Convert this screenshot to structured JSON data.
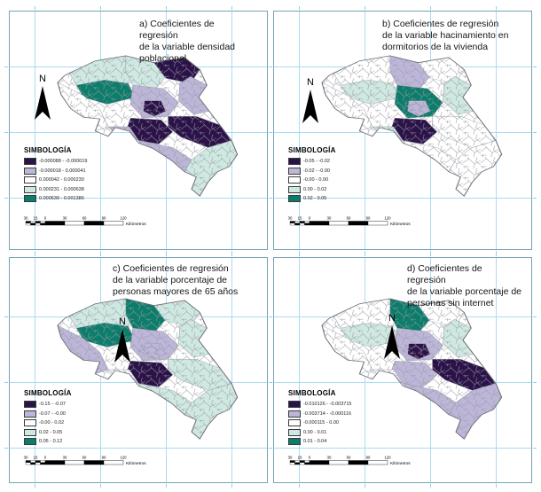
{
  "figure": {
    "background": "#ffffff",
    "legend_title": "SIMBOLOGÍA",
    "north_label": "N",
    "scale_label": "Kilómetros",
    "scale_ticks": [
      "30",
      "15",
      "0",
      "30",
      "60",
      "90",
      "120"
    ],
    "class_colors": [
      "#2b1349",
      "#bdb6d9",
      "#ffffff",
      "#cfe9e2",
      "#0d7d6b"
    ],
    "grid_color": "#a9dcf2",
    "frame_color": "#77a3b2"
  },
  "panels": [
    {
      "id": "a",
      "title": "a) Coeficientes de\nregresión\nde la variable densidad\npoblacional",
      "classes": [
        "-0.000088 - -0.000019",
        "-0.000018 - 0.000041",
        "0.000042 - 0.000230",
        "0.000231 - 0.000638",
        "0.000639 - 0.001386"
      ],
      "region_classes": [
        3,
        4,
        2,
        3,
        0,
        1,
        1,
        0,
        0,
        0,
        1,
        3,
        1
      ]
    },
    {
      "id": "b",
      "title": "b) Coeficientes de regresión\nde la variable hacinamiento en\ndormitorios de la vivienda",
      "classes": [
        "-0.05 - -0.02",
        "-0.02 - -0.00",
        "-0.00 - 0.00",
        "0.00 - 0.02",
        "0.02 - 0.05"
      ],
      "region_classes": [
        2,
        3,
        2,
        1,
        2,
        3,
        4,
        1,
        0,
        2,
        2,
        2,
        3
      ]
    },
    {
      "id": "c",
      "title": "c) Coeficientes de regresión\nde la variable porcentaje de\npersonas mayores de 65 años",
      "classes": [
        "-0.15 - -0.07",
        "-0.07 - -0.00",
        "-0.00 - 0.02",
        "0.02 - 0.05",
        "0.05 - 0.12"
      ],
      "region_classes": [
        3,
        4,
        1,
        4,
        3,
        3,
        1,
        1,
        0,
        3,
        3,
        3,
        2
      ]
    },
    {
      "id": "d",
      "title": "d) Coeficientes de\nregresión\nde la variable porcentaje de\npersonas  sin internet",
      "classes": [
        "-0.010126 - -0.003715",
        "-0.003714 - -0.000116",
        "-0.000115 - 0.00",
        "0.00 - 0.01",
        "0.01 - 0.04"
      ],
      "region_classes": [
        2,
        3,
        2,
        4,
        2,
        3,
        1,
        0,
        1,
        0,
        1,
        1,
        2
      ]
    }
  ]
}
